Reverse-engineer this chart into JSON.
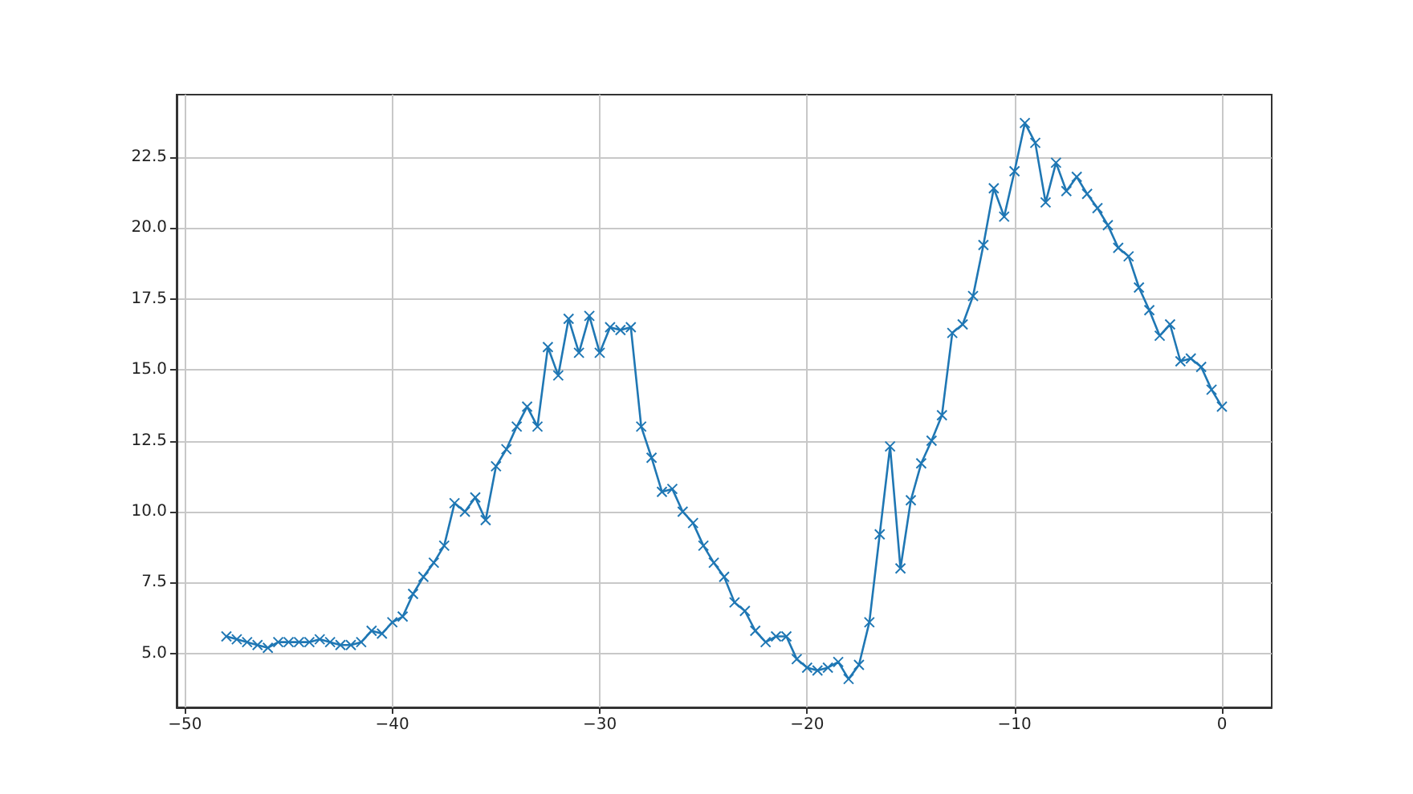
{
  "chart_data": {
    "type": "line",
    "marker": "cross",
    "grid": true,
    "xlim": [
      -50.4,
      2.4
    ],
    "ylim": [
      3.1,
      24.7
    ],
    "xticks": [
      {
        "value": -50,
        "label": "−50"
      },
      {
        "value": -40,
        "label": "−40"
      },
      {
        "value": -30,
        "label": "−30"
      },
      {
        "value": -20,
        "label": "−20"
      },
      {
        "value": -10,
        "label": "−10"
      },
      0
    ],
    "yticks": [
      {
        "value": 5,
        "label": "5.0"
      },
      {
        "value": 7.5,
        "label": "7.5"
      },
      {
        "value": 10,
        "label": "10.0"
      },
      {
        "value": 12.5,
        "label": "12.5"
      },
      {
        "value": 15,
        "label": "15.0"
      },
      {
        "value": 17.5,
        "label": "17.5"
      },
      {
        "value": 20,
        "label": "20.0"
      },
      {
        "value": 22.5,
        "label": "22.5"
      }
    ],
    "x": [
      -48,
      -47.5,
      -47,
      -46.5,
      -46,
      -45.5,
      -45,
      -44.5,
      -44,
      -43.5,
      -43,
      -42.5,
      -42,
      -41.5,
      -41,
      -40.5,
      -40,
      -39.5,
      -39,
      -38.5,
      -38,
      -37.5,
      -37,
      -36.5,
      -36,
      -35.5,
      -35,
      -34.5,
      -34,
      -33.5,
      -33,
      -32.5,
      -32,
      -31.5,
      -31,
      -30.5,
      -30,
      -29.5,
      -29,
      -28.5,
      -28,
      -27.5,
      -27,
      -26.5,
      -26,
      -25.5,
      -25,
      -24.5,
      -24,
      -23.5,
      -23,
      -22.5,
      -22,
      -21.5,
      -21,
      -20.5,
      -20,
      -19.5,
      -19,
      -18.5,
      -18,
      -17.5,
      -17,
      -16.5,
      -16,
      -15.5,
      -15,
      -14.5,
      -14,
      -13.5,
      -13,
      -12.5,
      -12,
      -11.5,
      -11,
      -10.5,
      -10,
      -9.5,
      -9,
      -8.5,
      -8,
      -7.5,
      -7,
      -6.5,
      -6,
      -5.5,
      -5,
      -4.5,
      -4,
      -3.5,
      -3,
      -2.5,
      -2,
      -1.5,
      -1,
      -0.5,
      0
    ],
    "series": [
      {
        "color": "#1f77b4",
        "values": [
          5.6,
          5.5,
          5.4,
          5.3,
          5.2,
          5.4,
          5.4,
          5.4,
          5.4,
          5.5,
          5.4,
          5.3,
          5.3,
          5.4,
          5.8,
          5.7,
          6.1,
          6.3,
          7.1,
          7.7,
          8.2,
          8.8,
          10.3,
          10.0,
          10.5,
          9.7,
          11.6,
          12.2,
          13.0,
          13.7,
          13.0,
          15.8,
          14.8,
          16.8,
          15.6,
          16.9,
          15.6,
          16.5,
          16.4,
          16.5,
          13.0,
          11.9,
          10.7,
          10.8,
          10.0,
          9.6,
          8.8,
          8.2,
          7.7,
          6.8,
          6.5,
          5.8,
          5.4,
          5.6,
          5.6,
          4.8,
          4.5,
          4.4,
          4.5,
          4.7,
          4.1,
          4.6,
          6.1,
          9.2,
          12.3,
          8.0,
          10.4,
          11.7,
          12.5,
          13.4,
          16.3,
          16.6,
          17.6,
          19.4,
          21.4,
          20.4,
          22.0,
          23.7,
          23.0,
          20.9,
          22.3,
          21.3,
          21.8,
          21.2,
          20.7,
          20.1,
          19.3,
          19.0,
          17.9,
          17.1,
          16.2,
          16.6,
          15.3,
          15.4,
          15.1,
          14.3,
          13.7
        ]
      }
    ]
  }
}
